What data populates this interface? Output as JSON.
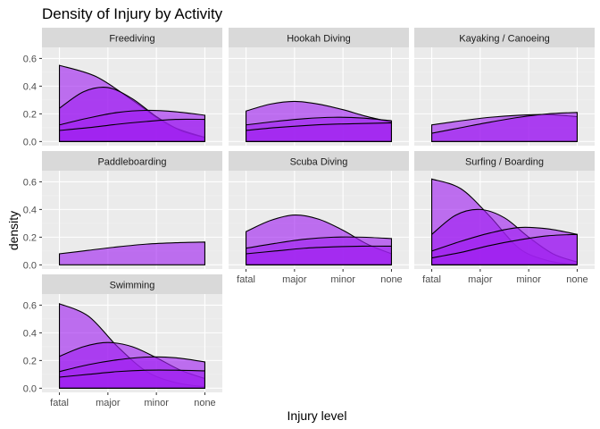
{
  "chart_data": {
    "type": "area",
    "title": "Density of Injury by Activity",
    "xlabel": "Injury level",
    "ylabel": "density",
    "x_categories": [
      "fatal",
      "major",
      "minor",
      "none"
    ],
    "y_ticks": [
      "0.0",
      "0.2",
      "0.4",
      "0.6"
    ],
    "ylim": [
      -0.03,
      0.68
    ],
    "grid": true,
    "fill_color": "#a020f0",
    "panels": [
      {
        "name": "Freediving",
        "curves": [
          [
            0.55,
            0.47,
            0.3,
            0.12,
            0.03
          ],
          [
            0.24,
            0.36,
            0.39,
            0.31,
            0.18,
            0.08,
            0.03
          ],
          [
            0.12,
            0.17,
            0.21,
            0.225,
            0.215,
            0.19
          ],
          [
            0.08,
            0.1,
            0.125,
            0.145,
            0.16,
            0.16
          ]
        ]
      },
      {
        "name": "Hookah Diving",
        "curves": [
          [
            0.22,
            0.27,
            0.29,
            0.27,
            0.23,
            0.18,
            0.14
          ],
          [
            0.12,
            0.145,
            0.165,
            0.175,
            0.17,
            0.15
          ],
          [
            0.08,
            0.1,
            0.115,
            0.125,
            0.13,
            0.135
          ]
        ]
      },
      {
        "name": "Kayaking / Canoeing",
        "curves": [
          [
            0.12,
            0.15,
            0.175,
            0.19,
            0.195,
            0.18
          ],
          [
            0.06,
            0.1,
            0.14,
            0.175,
            0.2,
            0.21
          ]
        ]
      },
      {
        "name": "Paddleboarding",
        "curves": [
          [
            0.08,
            0.105,
            0.13,
            0.15,
            0.16,
            0.165
          ]
        ]
      },
      {
        "name": "Scuba Diving",
        "curves": [
          [
            0.24,
            0.32,
            0.36,
            0.33,
            0.25,
            0.15,
            0.08
          ],
          [
            0.12,
            0.155,
            0.185,
            0.2,
            0.2,
            0.19
          ],
          [
            0.08,
            0.1,
            0.12,
            0.13,
            0.135,
            0.135
          ]
        ]
      },
      {
        "name": "Surfing / Boarding",
        "curves": [
          [
            0.62,
            0.55,
            0.35,
            0.12,
            0.03,
            0.0
          ],
          [
            0.22,
            0.36,
            0.4,
            0.34,
            0.2,
            0.08,
            0.02
          ],
          [
            0.1,
            0.17,
            0.23,
            0.27,
            0.26,
            0.22
          ],
          [
            0.05,
            0.09,
            0.14,
            0.18,
            0.21,
            0.22
          ]
        ]
      },
      {
        "name": "Swimming",
        "curves": [
          [
            0.61,
            0.52,
            0.3,
            0.12,
            0.04,
            0.01
          ],
          [
            0.23,
            0.3,
            0.33,
            0.3,
            0.22,
            0.13,
            0.07
          ],
          [
            0.12,
            0.17,
            0.205,
            0.225,
            0.22,
            0.19
          ],
          [
            0.08,
            0.1,
            0.12,
            0.13,
            0.13,
            0.125
          ]
        ]
      }
    ]
  }
}
